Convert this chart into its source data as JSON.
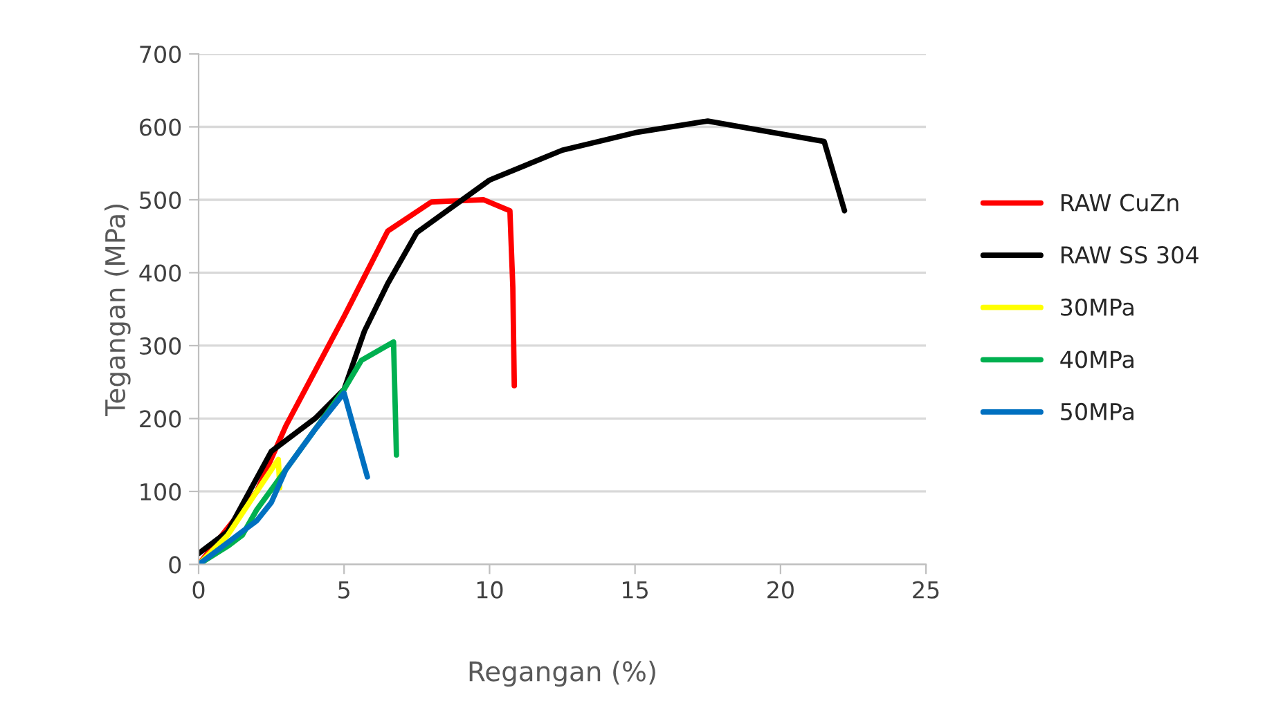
{
  "chart_data": {
    "type": "line",
    "xlabel": "Regangan (%)",
    "ylabel": "Tegangan (MPa)",
    "xlim": [
      0,
      25
    ],
    "xticks": [
      0,
      5,
      10,
      15,
      20,
      25
    ],
    "ylim": [
      0,
      700
    ],
    "yticks": [
      0,
      100,
      200,
      300,
      400,
      500,
      600,
      700
    ],
    "grid": "y",
    "legend": "right",
    "marker": "none",
    "line_style": "solid",
    "series": [
      {
        "name": "RAW CuZn",
        "color": "#ff0000",
        "x": [
          0,
          2,
          3,
          5,
          6.5,
          8,
          9.8,
          10.7,
          10.8,
          10.85
        ],
        "values": [
          0,
          100,
          190,
          340,
          457,
          497,
          500,
          485,
          380,
          245
        ]
      },
      {
        "name": "RAW SS 304",
        "color": "#000000",
        "x": [
          0,
          1,
          2.5,
          4,
          5,
          5.7,
          6.5,
          7.5,
          10,
          12.5,
          15,
          17.5,
          21.5,
          22.2
        ],
        "values": [
          15,
          45,
          155,
          200,
          240,
          320,
          385,
          455,
          527,
          568,
          592,
          608,
          580,
          485
        ]
      },
      {
        "name": "30MPa",
        "color": "#ffff00",
        "x": [
          0,
          1,
          2,
          2.74,
          2.79
        ],
        "values": [
          0,
          40,
          100,
          144,
          105
        ]
      },
      {
        "name": "40MPa",
        "color": "#00b050",
        "x": [
          0,
          1,
          1.5,
          2,
          3,
          5,
          5.6,
          6.7,
          6.8
        ],
        "values": [
          0,
          25,
          40,
          75,
          130,
          240,
          280,
          305,
          150
        ]
      },
      {
        "name": "50MPa",
        "color": "#0070c0",
        "x": [
          0,
          1,
          2,
          2.5,
          3,
          4,
          5,
          5.8
        ],
        "values": [
          0,
          30,
          60,
          85,
          130,
          185,
          235,
          120
        ]
      }
    ]
  }
}
